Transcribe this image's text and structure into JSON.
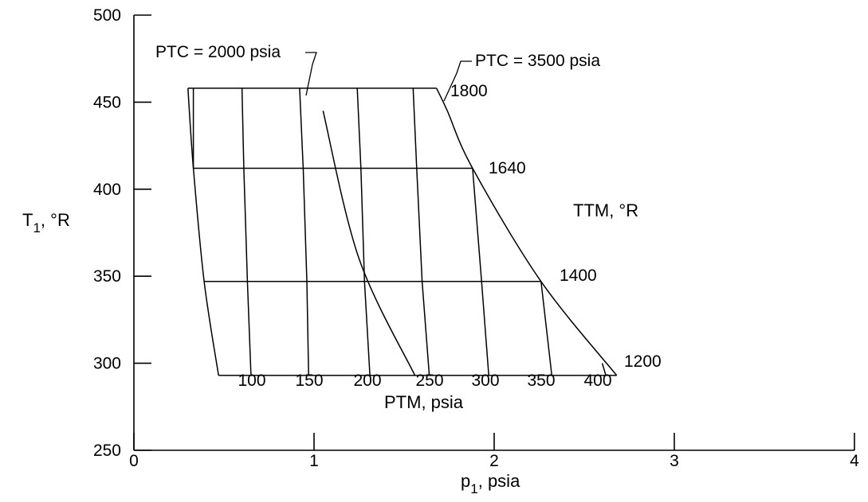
{
  "chart_data": {
    "type": "line",
    "title": "",
    "xlabel": {
      "main": "p",
      "sub": "1",
      "rest": ", psia"
    },
    "ylabel": {
      "main": "T",
      "sub": "1",
      "rest": ", °R"
    },
    "xlim": [
      0,
      4
    ],
    "ylim": [
      250,
      500
    ],
    "x_ticks": [
      0,
      1,
      2,
      3,
      4
    ],
    "x_tick_labels": [
      "0",
      "1",
      "2",
      "3",
      "4"
    ],
    "y_ticks": [
      250,
      300,
      350,
      400,
      450,
      500
    ],
    "y_tick_labels": [
      "250",
      "300",
      "350",
      "400",
      "450",
      "500"
    ],
    "grid": false,
    "ttm_axis_title": "TTM, °R",
    "ptm_axis_title": "PTM, psia",
    "ttm_lines": [
      {
        "label": "1200",
        "points": [
          [
            0.47,
            293
          ],
          [
            2.68,
            293
          ]
        ]
      },
      {
        "label": "1400",
        "points": [
          [
            0.39,
            347
          ],
          [
            2.26,
            347
          ]
        ]
      },
      {
        "label": "1640",
        "points": [
          [
            0.33,
            412
          ],
          [
            1.88,
            412
          ]
        ]
      },
      {
        "label": "1800",
        "points": [
          [
            0.3,
            458
          ],
          [
            1.68,
            458
          ]
        ]
      }
    ],
    "ptm_lines": [
      {
        "label": "",
        "points": [
          [
            0.33,
            458
          ],
          [
            0.33,
            412
          ]
        ]
      },
      {
        "label": "100",
        "points": [
          [
            0.65,
            293
          ],
          [
            0.63,
            347
          ],
          [
            0.61,
            412
          ],
          [
            0.6,
            458
          ]
        ]
      },
      {
        "label": "150",
        "points": [
          [
            0.97,
            293
          ],
          [
            0.96,
            347
          ],
          [
            0.94,
            412
          ],
          [
            0.92,
            458
          ]
        ]
      },
      {
        "label": "200",
        "points": [
          [
            1.31,
            293
          ],
          [
            1.28,
            347
          ],
          [
            1.26,
            412
          ],
          [
            1.24,
            458
          ]
        ]
      },
      {
        "label": "250",
        "points": [
          [
            1.64,
            293
          ],
          [
            1.6,
            347
          ],
          [
            1.57,
            412
          ],
          [
            1.55,
            458
          ]
        ]
      },
      {
        "label": "300",
        "points": [
          [
            1.97,
            293
          ],
          [
            1.93,
            347
          ],
          [
            1.88,
            412
          ]
        ]
      },
      {
        "label": "350",
        "points": [
          [
            2.32,
            293
          ],
          [
            2.26,
            347
          ]
        ]
      },
      {
        "label": "400",
        "points": [
          [
            2.62,
            293
          ],
          [
            2.6,
            300
          ]
        ]
      }
    ],
    "boundaries": [
      {
        "name": "left-edge",
        "points": [
          [
            0.47,
            293
          ],
          [
            0.39,
            347
          ],
          [
            0.33,
            412
          ],
          [
            0.3,
            458
          ]
        ]
      },
      {
        "name": "right-edge",
        "points": [
          [
            2.68,
            293
          ],
          [
            2.26,
            347
          ],
          [
            1.88,
            412
          ],
          [
            1.74,
            445
          ],
          [
            1.68,
            458
          ]
        ]
      }
    ],
    "ptc_lines": [
      {
        "label": "PTC = 2000 psia",
        "points": [
          [
            1.05,
            445
          ],
          [
            1.25,
            360
          ],
          [
            1.56,
            293
          ]
        ]
      },
      {
        "label": "PTC = 3500 psia",
        "points": [
          [
            1.68,
            458
          ],
          [
            1.88,
            412
          ],
          [
            2.26,
            347
          ],
          [
            2.68,
            293
          ]
        ]
      }
    ]
  }
}
